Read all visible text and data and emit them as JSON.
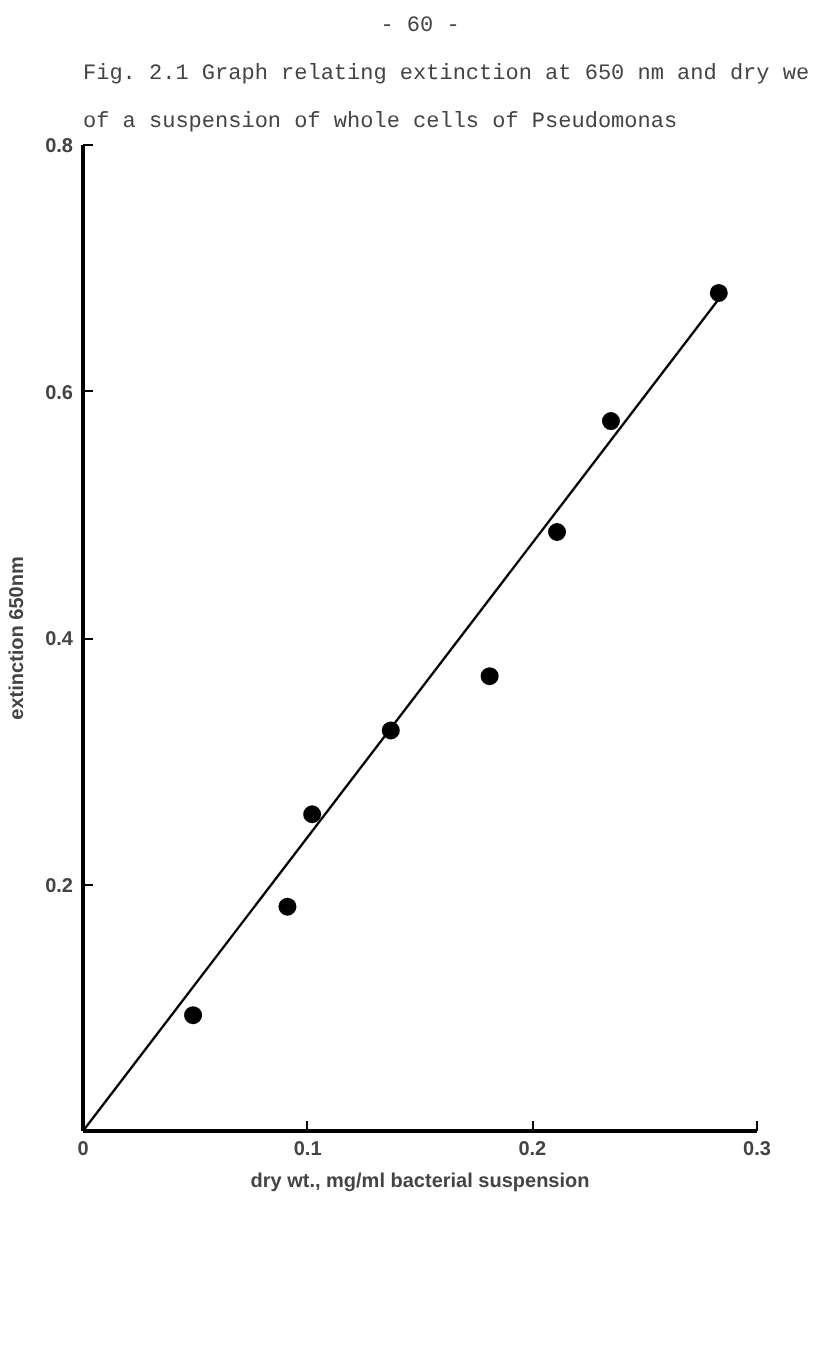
{
  "chart_data": {
    "type": "scatter",
    "title": "Fig. 2.1  Graph relating extinction at 650 nm and dry we",
    "subtitle": "of a suspension of whole cells of Pseudomonas",
    "xlabel": "dry wt., mg/ml bacterial suspension",
    "ylabel": "extinction 650nm",
    "annotations": [
      "- 60 -"
    ],
    "x": [
      0.049,
      0.091,
      0.102,
      0.137,
      0.181,
      0.211,
      0.235,
      0.283
    ],
    "series": [
      {
        "color": "#000000",
        "marker": "circle",
        "values": [
          0.094,
          0.182,
          0.257,
          0.325,
          0.369,
          0.486,
          0.576,
          0.68
        ]
      },
      {
        "type": "line",
        "color": "#000000",
        "line_style": "solid",
        "x": [
          0,
          0.283
        ],
        "values": [
          0,
          0.675
        ]
      }
    ],
    "xlim": [
      0,
      0.3
    ],
    "ylim": [
      0,
      0.8
    ],
    "xticks": [
      0,
      0.1,
      0.2,
      0.3
    ],
    "yticks": [
      {
        "value": 0,
        "label": null
      },
      0.2,
      0.4,
      0.6,
      0.8
    ],
    "grid": false
  }
}
